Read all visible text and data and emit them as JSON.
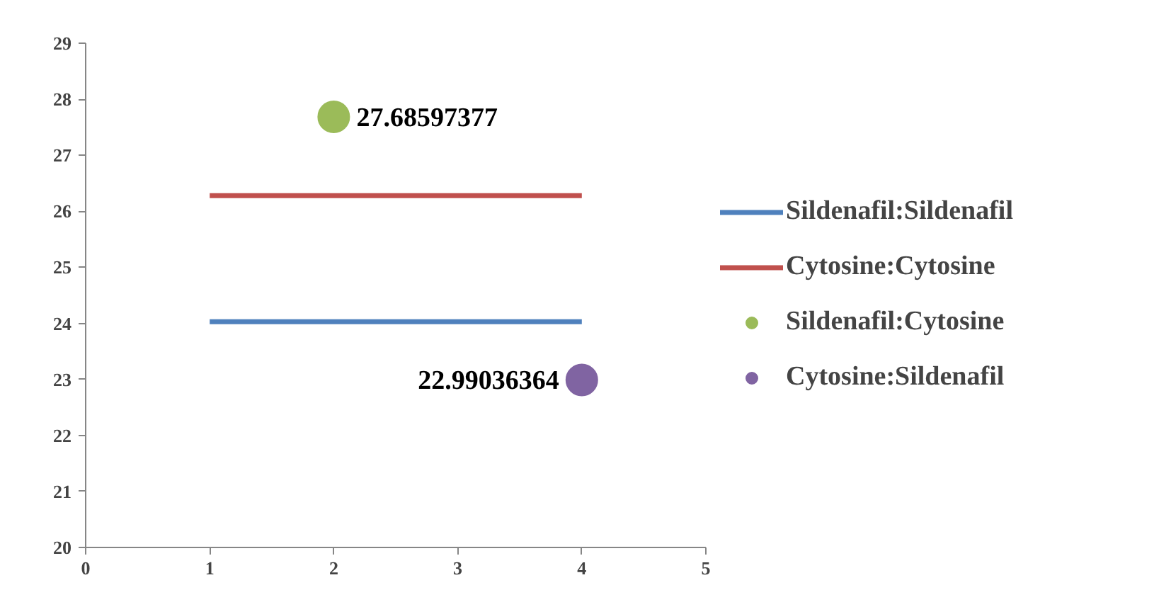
{
  "chart_data": {
    "type": "line",
    "xlim": [
      0,
      5
    ],
    "xticks": [
      0,
      1,
      2,
      3,
      4,
      5
    ],
    "ylim": [
      20,
      29
    ],
    "yticks": [
      20,
      21,
      22,
      23,
      24,
      25,
      26,
      27,
      28,
      29
    ],
    "grid": false,
    "legend": "right",
    "series": [
      {
        "name": "Sildenafil:Sildenafil",
        "color": "#4f81bd",
        "x": [
          1,
          4
        ],
        "values": [
          24.03,
          24.03
        ],
        "marker": "none"
      },
      {
        "name": "Cytosine:Cytosine",
        "color": "#c0504d",
        "x": [
          1,
          4
        ],
        "values": [
          26.28,
          26.28
        ],
        "marker": "none"
      },
      {
        "name": "Sildenafil:Cytosine",
        "type": "scatter",
        "color": "#9bbb59",
        "x": [
          2
        ],
        "values": [
          27.68597377
        ],
        "value_labels": [
          "27.68597377"
        ],
        "marker": "circle"
      },
      {
        "name": "Cytosine:Sildenafil",
        "type": "scatter",
        "color": "#8064a2",
        "x": [
          4
        ],
        "values": [
          22.99036364
        ],
        "value_labels": [
          "22.99036364"
        ],
        "marker": "circle"
      }
    ]
  }
}
